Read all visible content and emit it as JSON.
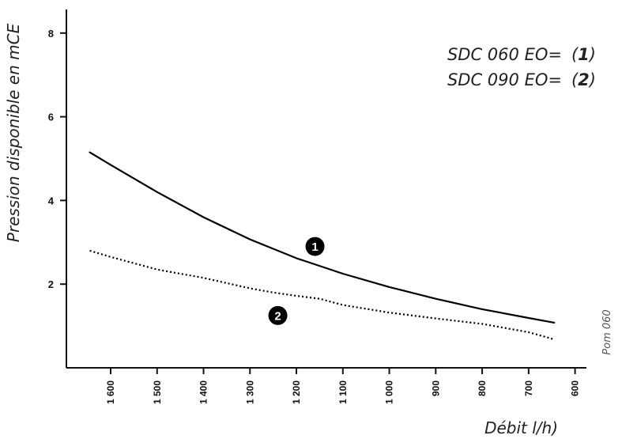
{
  "chart_data": {
    "type": "line",
    "xlabel": "Débit l/h)",
    "ylabel": "Pression disponible en mCE",
    "xlim": [
      1650,
      590
    ],
    "ylim": [
      0,
      8.5
    ],
    "x_ticks": [
      1600,
      1500,
      1400,
      1300,
      1200,
      1100,
      1000,
      900,
      800,
      700,
      600
    ],
    "x_tick_labels": [
      "1 600",
      "1 500",
      "1 400",
      "1 300",
      "1 200",
      "1 100",
      "1 000",
      "900",
      "800",
      "700",
      "600"
    ],
    "y_ticks": [
      2,
      4,
      6,
      8
    ],
    "y_tick_labels": [
      "2",
      "4",
      "6",
      "8"
    ],
    "grid": false,
    "legend": [
      {
        "text": "SDC 060 EO=",
        "num": "1"
      },
      {
        "text": "SDC 090 EO=",
        "num": "2"
      }
    ],
    "series": [
      {
        "marker": "1",
        "style": "solid",
        "color": "#000000",
        "x": [
          1645,
          1600,
          1500,
          1400,
          1300,
          1200,
          1100,
          1000,
          900,
          800,
          700,
          645
        ],
        "y": [
          5.15,
          4.85,
          4.2,
          3.6,
          3.07,
          2.62,
          2.25,
          1.93,
          1.65,
          1.4,
          1.19,
          1.08
        ]
      },
      {
        "marker": "2",
        "style": "dotted",
        "color": "#000000",
        "x": [
          1645,
          1600,
          1500,
          1400,
          1300,
          1250,
          1200,
          1150,
          1100,
          1000,
          900,
          800,
          700,
          645
        ],
        "y": [
          2.8,
          2.65,
          2.35,
          2.15,
          1.9,
          1.8,
          1.72,
          1.65,
          1.5,
          1.32,
          1.18,
          1.05,
          0.85,
          0.68
        ]
      }
    ],
    "marker_positions": [
      {
        "label": "1",
        "x": 1160,
        "y": 2.9
      },
      {
        "label": "2",
        "x": 1240,
        "y": 1.25
      }
    ],
    "reference": "Pom 060"
  }
}
